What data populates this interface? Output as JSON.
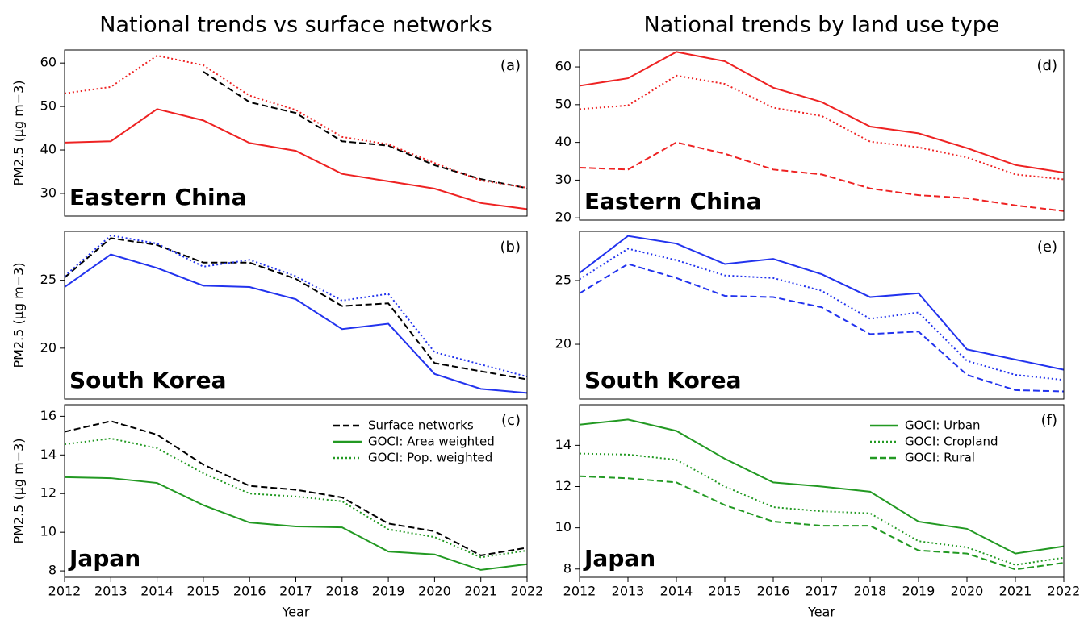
{
  "chart_data": [
    {
      "type": "line",
      "title": "National trends vs surface networks",
      "panel_label": "(a)",
      "region": "Eastern China",
      "ylabel": "PM2.5 (μg m−3)",
      "x": [
        2012,
        2013,
        2014,
        2015,
        2016,
        2017,
        2018,
        2019,
        2020,
        2021,
        2022
      ],
      "xlim": [
        2012,
        2022
      ],
      "ylim": [
        24.8,
        63
      ],
      "yticks": [
        30,
        40,
        50,
        60
      ],
      "series": [
        {
          "color": "#000000",
          "dash": "dashed",
          "values": [
            null,
            null,
            null,
            58,
            51,
            48.5,
            42,
            41,
            36.5,
            33.3,
            31.2
          ]
        },
        {
          "color": "#ee2222",
          "dash": "solid",
          "values": [
            41.7,
            42,
            49.4,
            46.8,
            41.6,
            39.8,
            34.5,
            32.8,
            31.1,
            27.8,
            26.4
          ]
        },
        {
          "color": "#ee2222",
          "dash": "dotted",
          "values": [
            53,
            54.5,
            61.7,
            59.5,
            52.5,
            49.2,
            43,
            41.3,
            37,
            33,
            31.3
          ]
        }
      ]
    },
    {
      "type": "line",
      "panel_label": "(b)",
      "region": "South Korea",
      "ylabel": "PM2.5 (μg m−3)",
      "x": [
        2012,
        2013,
        2014,
        2015,
        2016,
        2017,
        2018,
        2019,
        2020,
        2021,
        2022
      ],
      "xlim": [
        2012,
        2022
      ],
      "ylim": [
        16.25,
        28.6
      ],
      "yticks": [
        20,
        25
      ],
      "series": [
        {
          "color": "#000000",
          "dash": "dashed",
          "values": [
            25.2,
            28.1,
            27.6,
            26.3,
            26.3,
            25.1,
            23.1,
            23.3,
            18.9,
            18.3,
            17.7
          ]
        },
        {
          "color": "#2233ee",
          "dash": "solid",
          "values": [
            24.5,
            26.9,
            25.9,
            24.6,
            24.5,
            23.6,
            21.4,
            21.8,
            18.1,
            17.0,
            16.7
          ]
        },
        {
          "color": "#2233ee",
          "dash": "dotted",
          "values": [
            25.3,
            28.3,
            27.7,
            26.0,
            26.5,
            25.3,
            23.5,
            24.0,
            19.7,
            18.8,
            17.9
          ]
        }
      ]
    },
    {
      "type": "line",
      "panel_label": "(c)",
      "region": "Japan",
      "ylabel": "PM2.5 (μg m−3)",
      "xlabel": "Year",
      "x": [
        2012,
        2013,
        2014,
        2015,
        2016,
        2017,
        2018,
        2019,
        2020,
        2021,
        2022
      ],
      "xlim": [
        2012,
        2022
      ],
      "xticks": [
        2012,
        2013,
        2014,
        2015,
        2016,
        2017,
        2018,
        2019,
        2020,
        2021,
        2022
      ],
      "ylim": [
        7.67,
        16.6
      ],
      "yticks": [
        8,
        10,
        12,
        14,
        16
      ],
      "legend": "upper right",
      "series": [
        {
          "name": "Surface networks",
          "color": "#000000",
          "dash": "dashed",
          "values": [
            15.2,
            15.75,
            15.05,
            13.5,
            12.4,
            12.2,
            11.8,
            10.45,
            10.05,
            8.8,
            9.2
          ]
        },
        {
          "name": "GOCI: Area weighted",
          "color": "#229922",
          "dash": "solid",
          "values": [
            12.85,
            12.8,
            12.55,
            11.4,
            10.5,
            10.3,
            10.25,
            9.0,
            8.85,
            8.05,
            8.35
          ]
        },
        {
          "name": "GOCI: Pop. weighted",
          "color": "#229922",
          "dash": "dotted",
          "values": [
            14.55,
            14.85,
            14.35,
            13.05,
            12.0,
            11.85,
            11.6,
            10.15,
            9.75,
            8.7,
            9.05
          ]
        }
      ]
    },
    {
      "type": "line",
      "title": "National trends by land use type",
      "panel_label": "(d)",
      "region": "Eastern China",
      "x": [
        2012,
        2013,
        2014,
        2015,
        2016,
        2017,
        2018,
        2019,
        2020,
        2021,
        2022
      ],
      "xlim": [
        2012,
        2022
      ],
      "ylim": [
        19.4,
        64.5
      ],
      "yticks": [
        20,
        30,
        40,
        50,
        60
      ],
      "series": [
        {
          "color": "#ee2222",
          "dash": "solid",
          "values": [
            55,
            57,
            64,
            61.5,
            54.5,
            50.7,
            44.2,
            42.4,
            38.5,
            34,
            32
          ]
        },
        {
          "color": "#ee2222",
          "dash": "dotted",
          "values": [
            48.8,
            49.8,
            57.7,
            55.5,
            49.2,
            47,
            40.2,
            38.7,
            36,
            31.5,
            30.2
          ]
        },
        {
          "color": "#ee2222",
          "dash": "dashed",
          "values": [
            33.3,
            32.8,
            40,
            37,
            32.8,
            31.5,
            27.8,
            26,
            25.2,
            23.3,
            21.8
          ]
        }
      ]
    },
    {
      "type": "line",
      "panel_label": "(e)",
      "region": "South Korea",
      "x": [
        2012,
        2013,
        2014,
        2015,
        2016,
        2017,
        2018,
        2019,
        2020,
        2021,
        2022
      ],
      "xlim": [
        2012,
        2022
      ],
      "ylim": [
        15.7,
        28.86
      ],
      "yticks": [
        20,
        25
      ],
      "series": [
        {
          "color": "#2233ee",
          "dash": "solid",
          "values": [
            25.6,
            28.5,
            27.9,
            26.3,
            26.7,
            25.5,
            23.7,
            24.0,
            19.6,
            18.8,
            18.0
          ]
        },
        {
          "color": "#2233ee",
          "dash": "dotted",
          "values": [
            25.1,
            27.5,
            26.6,
            25.4,
            25.2,
            24.2,
            22.0,
            22.5,
            18.7,
            17.6,
            17.2
          ]
        },
        {
          "color": "#2233ee",
          "dash": "dashed",
          "values": [
            24.0,
            26.3,
            25.2,
            23.8,
            23.7,
            22.9,
            20.8,
            21.0,
            17.6,
            16.4,
            16.3
          ]
        }
      ]
    },
    {
      "type": "line",
      "panel_label": "(f)",
      "region": "Japan",
      "xlabel": "Year",
      "x": [
        2012,
        2013,
        2014,
        2015,
        2016,
        2017,
        2018,
        2019,
        2020,
        2021,
        2022
      ],
      "xlim": [
        2012,
        2022
      ],
      "xticks": [
        2012,
        2013,
        2014,
        2015,
        2016,
        2017,
        2018,
        2019,
        2020,
        2021,
        2022
      ],
      "ylim": [
        7.6,
        15.97
      ],
      "yticks": [
        8,
        10,
        12,
        14
      ],
      "legend": "upper right",
      "series": [
        {
          "name": "GOCI: Urban",
          "color": "#229922",
          "dash": "solid",
          "values": [
            15.0,
            15.25,
            14.7,
            13.35,
            12.2,
            12.0,
            11.75,
            10.3,
            9.95,
            8.75,
            9.1
          ]
        },
        {
          "name": "GOCI: Cropland",
          "color": "#229922",
          "dash": "dotted",
          "values": [
            13.6,
            13.55,
            13.3,
            12.0,
            11.0,
            10.8,
            10.7,
            9.35,
            9.05,
            8.2,
            8.55
          ]
        },
        {
          "name": "GOCI: Rural",
          "color": "#229922",
          "dash": "dashed",
          "values": [
            12.5,
            12.4,
            12.2,
            11.1,
            10.3,
            10.1,
            10.1,
            8.9,
            8.75,
            7.98,
            8.3
          ]
        }
      ]
    }
  ]
}
